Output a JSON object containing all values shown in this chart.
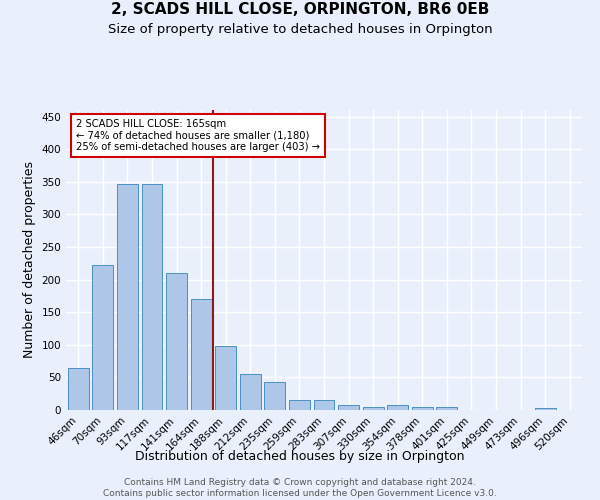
{
  "title": "2, SCADS HILL CLOSE, ORPINGTON, BR6 0EB",
  "subtitle": "Size of property relative to detached houses in Orpington",
  "xlabel": "Distribution of detached houses by size in Orpington",
  "ylabel": "Number of detached properties",
  "bar_labels": [
    "46sqm",
    "70sqm",
    "93sqm",
    "117sqm",
    "141sqm",
    "164sqm",
    "188sqm",
    "212sqm",
    "235sqm",
    "259sqm",
    "283sqm",
    "307sqm",
    "330sqm",
    "354sqm",
    "378sqm",
    "401sqm",
    "425sqm",
    "449sqm",
    "473sqm",
    "496sqm",
    "520sqm"
  ],
  "bar_values": [
    65,
    222,
    346,
    346,
    210,
    170,
    98,
    55,
    43,
    15,
    15,
    7,
    5,
    7,
    5,
    4,
    0,
    0,
    0,
    3,
    0
  ],
  "bar_color": "#aec6e8",
  "bar_edge_color": "#4a90c4",
  "vline_color": "#8b1a1a",
  "annotation_text": "2 SCADS HILL CLOSE: 165sqm\n← 74% of detached houses are smaller (1,180)\n25% of semi-detached houses are larger (403) →",
  "annotation_box_color": "#ffffff",
  "annotation_box_edge": "#cc0000",
  "ylim": [
    0,
    460
  ],
  "yticks": [
    0,
    50,
    100,
    150,
    200,
    250,
    300,
    350,
    400,
    450
  ],
  "footer": "Contains HM Land Registry data © Crown copyright and database right 2024.\nContains public sector information licensed under the Open Government Licence v3.0.",
  "bg_color": "#eaf0fb",
  "grid_color": "#ffffff",
  "title_fontsize": 11,
  "subtitle_fontsize": 9.5,
  "axis_label_fontsize": 9,
  "tick_fontsize": 7.5,
  "footer_fontsize": 6.5
}
